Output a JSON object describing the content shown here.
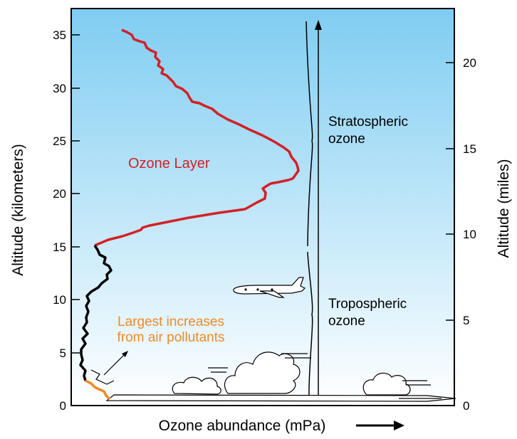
{
  "figure": {
    "left_axis_label": "Altitude (kilometers)",
    "right_axis_label": "Altitude (miles)",
    "x_axis_label": "Ozone abundance (mPa)",
    "left_ticks": [
      "0",
      "5",
      "10",
      "15",
      "20",
      "25",
      "30",
      "35"
    ],
    "right_ticks": [
      "0",
      "5",
      "10",
      "15",
      "20"
    ],
    "ozone_layer_label": "Ozone Layer",
    "pollutants_label_line1": "Largest increases",
    "pollutants_label_line2": "from air pollutants",
    "stratospheric_label_line1": "Stratospheric",
    "stratospheric_label_line2": "ozone",
    "tropospheric_label_line1": "Tropospheric",
    "tropospheric_label_line2": "ozone"
  },
  "colors": {
    "sky_top": "#7fcdf2",
    "sky_bottom": "#ffffff",
    "stratospheric_profile": "#d42027",
    "tropospheric_profile": "#000000",
    "pollution_segment": "#f08a24",
    "ozone_layer_text": "#d42027",
    "pollutants_text": "#f08a24"
  },
  "icons": [
    "airplane-icon",
    "cloud-icon"
  ]
}
